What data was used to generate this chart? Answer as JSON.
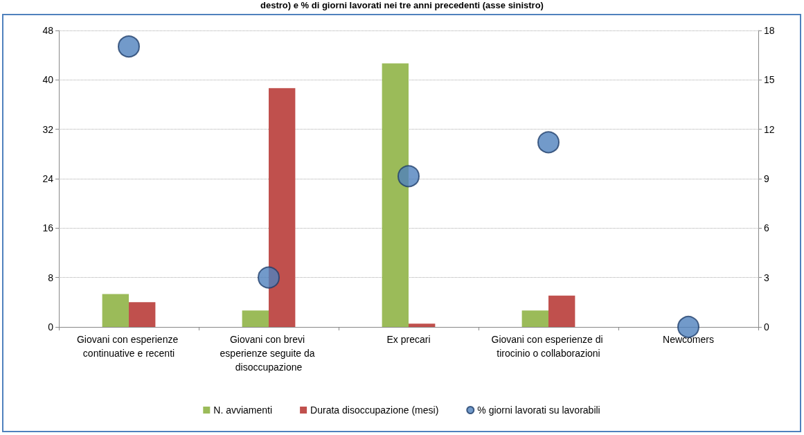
{
  "chart_data": {
    "type": "bar",
    "title": "destro) e % di giorni lavorati nei tre anni precedenti (asse sinistro)",
    "categories": [
      "Giovani con esperienze continuative e recenti",
      "Giovani con brevi esperienze seguite da disoccupazione",
      "Ex precari",
      "Giovani con esperienze di tirocinio o collaborazioni",
      "Newcomers"
    ],
    "series": [
      {
        "name": "N. avviamenti",
        "axis": "y2",
        "color": "#9bbb59",
        "values": [
          2.0,
          1.0,
          16.0,
          1.0,
          null
        ]
      },
      {
        "name": "Durata disoccupazione (mesi)",
        "axis": "y2",
        "color": "#c0504d",
        "values": [
          1.5,
          14.5,
          0.2,
          1.9,
          null
        ]
      },
      {
        "name": "% giorni lavorati su lavorabili",
        "type": "scatter",
        "axis": "y",
        "color": "#4f81bd",
        "x": [
          "Giovani con esperienze continuative e recenti",
          "Giovani con brevi esperienze seguite da disoccupazione",
          "Ex precari",
          "Giovani con esperienze di tirocinio o collaborazioni",
          "Newcomers"
        ],
        "values": [
          45.4,
          8.0,
          24.4,
          29.9,
          0
        ]
      }
    ],
    "ylim": [
      0,
      48
    ],
    "yticks": [
      0,
      8,
      16,
      24,
      32,
      40,
      48
    ],
    "y2lim": [
      0,
      18
    ],
    "y2ticks": [
      0,
      3,
      6,
      9,
      12,
      15,
      18
    ],
    "grid": "y",
    "legend": "bottom",
    "marker": "circle"
  }
}
